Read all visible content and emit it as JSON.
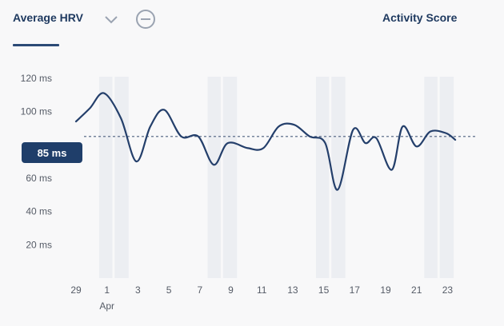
{
  "header": {
    "active_tab": "Average HRV",
    "secondary_tab": "Activity Score",
    "icons": {
      "dropdown": "chevron-down-icon",
      "remove": "minus-circle-icon"
    }
  },
  "colors": {
    "line": "#243f6b",
    "badge": "#1f3e6a",
    "band": "#eceef2",
    "axis_text": "#555b66"
  },
  "average_badge": "85 ms",
  "chart_data": {
    "type": "line",
    "ylim": [
      0,
      130
    ],
    "ytick_values": [
      20,
      40,
      60,
      100,
      120
    ],
    "ytick_labels": [
      "20 ms",
      "40 ms",
      "60 ms",
      "100 ms",
      "120 ms"
    ],
    "average": 85,
    "x_labels": [
      "29",
      "1",
      "3",
      "5",
      "7",
      "9",
      "11",
      "13",
      "15",
      "17",
      "19",
      "21",
      "23"
    ],
    "month_label": "Apr",
    "x_start_day": -1,
    "x_end_day": 23.5,
    "x_label_days": [
      -1,
      1,
      3,
      5,
      7,
      9,
      11,
      13,
      15,
      17,
      19,
      21,
      23
    ],
    "month_label_day": 1,
    "weekend_bands": [
      [
        0.5,
        2.4
      ],
      [
        7.5,
        9.4
      ],
      [
        14.5,
        16.4
      ],
      [
        21.5,
        23.4
      ]
    ],
    "x": [
      -1,
      -0.1,
      0.8,
      1.9,
      2.9,
      3.8,
      4.7,
      5.8,
      6.9,
      7.9,
      8.8,
      10.1,
      11.1,
      12.1,
      13.1,
      14.1,
      15.1,
      15.9,
      16.9,
      17.7,
      18.4,
      19.4,
      20.1,
      21.0,
      21.9,
      22.9,
      23.5
    ],
    "y": [
      94,
      102,
      111,
      96,
      70,
      91,
      101,
      85,
      85,
      68,
      81,
      78,
      78,
      91,
      92,
      85,
      81,
      53,
      89,
      81,
      84,
      65,
      91,
      79,
      88,
      87,
      83
    ]
  }
}
